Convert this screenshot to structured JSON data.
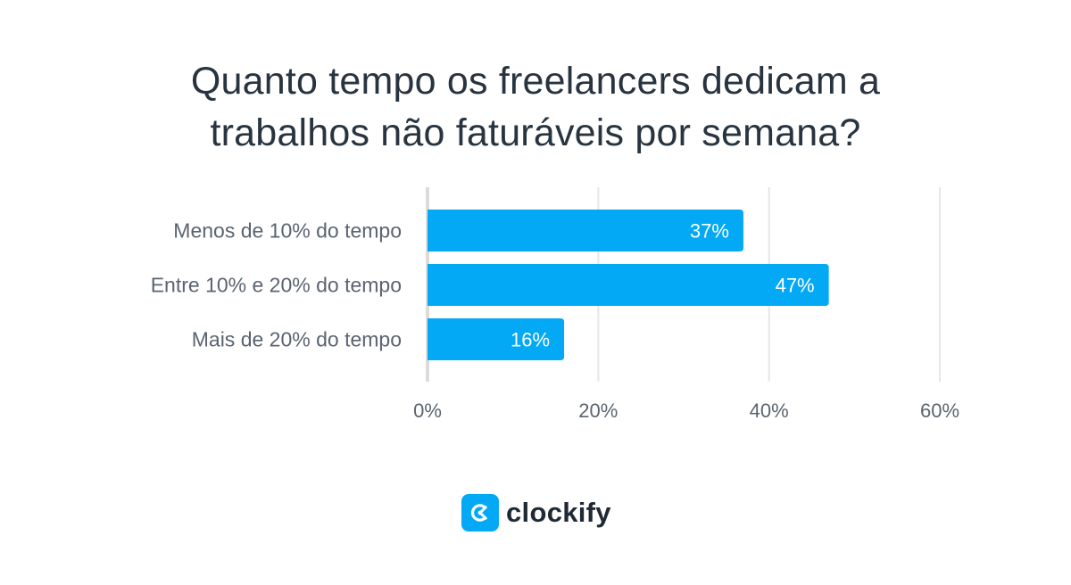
{
  "title_lines": [
    "Quanto tempo os freelancers dedicam a",
    "trabalhos não faturáveis por semana?"
  ],
  "chart_data": {
    "type": "bar",
    "orientation": "horizontal",
    "categories": [
      "Menos de 10% do tempo",
      "Entre 10% e 20% do tempo",
      "Mais de 20% do tempo"
    ],
    "values": [
      37,
      47,
      16
    ],
    "data_labels": [
      "37%",
      "47%",
      "16%"
    ],
    "xlim": [
      0,
      60
    ],
    "xticks": [
      0,
      20,
      40,
      60
    ],
    "xtick_labels": [
      "0%",
      "20%",
      "40%",
      "60%"
    ],
    "grid": "vertical",
    "bar_color": "#03a9f4",
    "grid_color": "#e6e6e6",
    "axis_color": "#dcdcdc"
  },
  "logo": {
    "text": "clockify",
    "icon": "clockify-logo-icon",
    "color": "#03a9f4"
  }
}
